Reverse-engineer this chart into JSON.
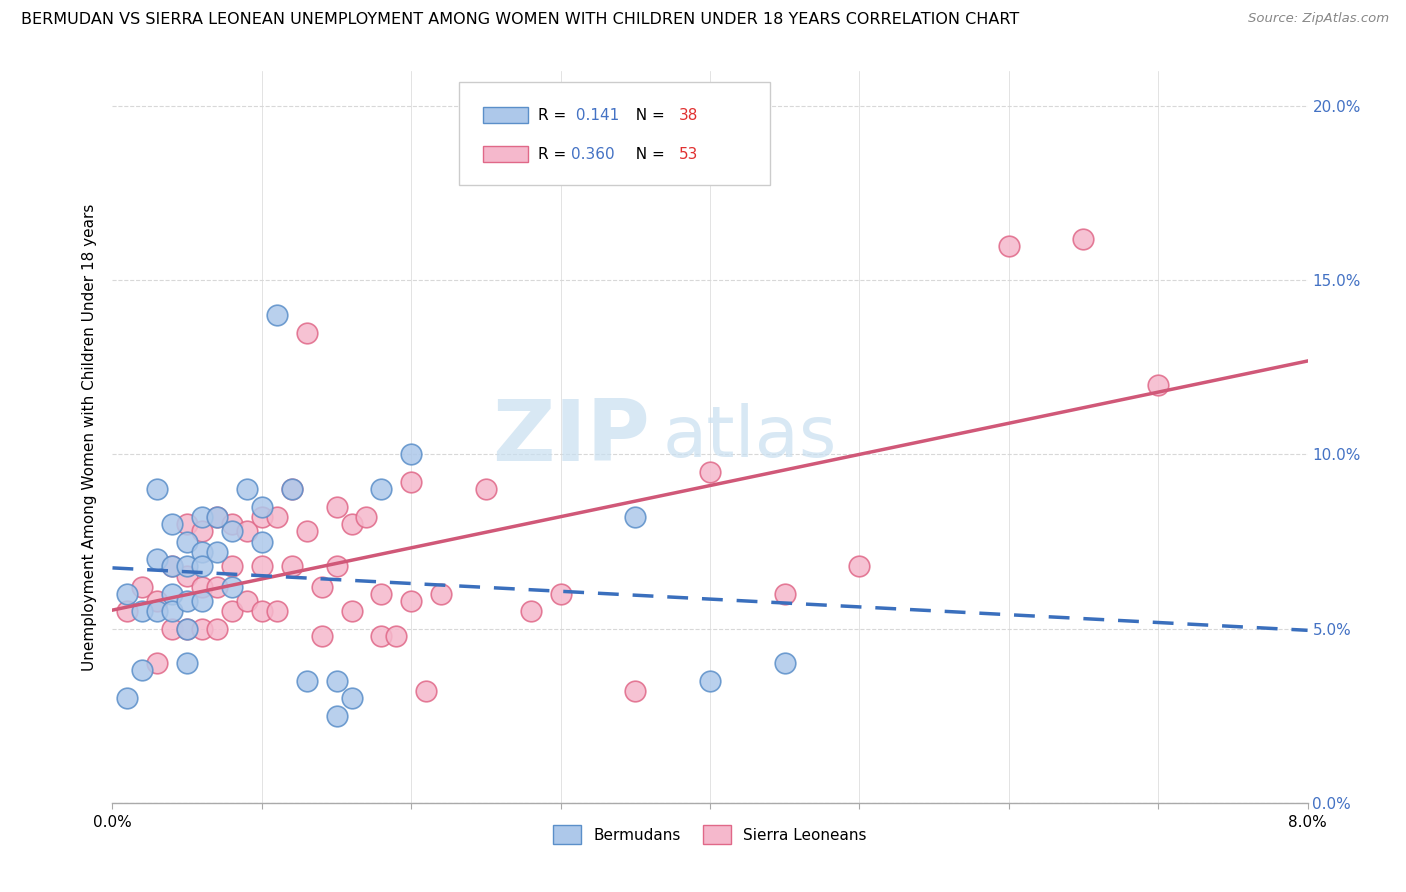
{
  "title": "BERMUDAN VS SIERRA LEONEAN UNEMPLOYMENT AMONG WOMEN WITH CHILDREN UNDER 18 YEARS CORRELATION CHART",
  "source": "Source: ZipAtlas.com",
  "ylabel": "Unemployment Among Women with Children Under 18 years",
  "bermudans_R": "0.141",
  "bermudans_N": "38",
  "sierra_R": "0.360",
  "sierra_N": "53",
  "bermudans_fill": "#adc8ea",
  "sierra_fill": "#f5b8cc",
  "bermudans_edge": "#5b8fc9",
  "sierra_edge": "#e06888",
  "trendline_bermudans_color": "#3a6fbd",
  "trendline_sierra_color": "#d05878",
  "watermark_zip": "ZIP",
  "watermark_atlas": "atlas",
  "background_color": "#ffffff",
  "grid_color": "#d8d8d8",
  "bermudans_x": [
    0.001,
    0.001,
    0.002,
    0.002,
    0.003,
    0.003,
    0.003,
    0.004,
    0.004,
    0.004,
    0.004,
    0.005,
    0.005,
    0.005,
    0.005,
    0.005,
    0.006,
    0.006,
    0.006,
    0.006,
    0.007,
    0.007,
    0.008,
    0.008,
    0.009,
    0.01,
    0.01,
    0.011,
    0.012,
    0.013,
    0.015,
    0.015,
    0.016,
    0.018,
    0.02,
    0.035,
    0.04,
    0.045
  ],
  "bermudans_y": [
    0.03,
    0.06,
    0.055,
    0.038,
    0.055,
    0.07,
    0.09,
    0.06,
    0.08,
    0.068,
    0.055,
    0.075,
    0.068,
    0.058,
    0.05,
    0.04,
    0.082,
    0.072,
    0.068,
    0.058,
    0.082,
    0.072,
    0.078,
    0.062,
    0.09,
    0.085,
    0.075,
    0.14,
    0.09,
    0.035,
    0.035,
    0.025,
    0.03,
    0.09,
    0.1,
    0.082,
    0.035,
    0.04
  ],
  "sierra_x": [
    0.001,
    0.002,
    0.003,
    0.003,
    0.004,
    0.004,
    0.005,
    0.005,
    0.005,
    0.006,
    0.006,
    0.006,
    0.007,
    0.007,
    0.007,
    0.008,
    0.008,
    0.008,
    0.009,
    0.009,
    0.01,
    0.01,
    0.01,
    0.011,
    0.011,
    0.012,
    0.012,
    0.013,
    0.013,
    0.014,
    0.014,
    0.015,
    0.015,
    0.016,
    0.016,
    0.017,
    0.018,
    0.018,
    0.019,
    0.02,
    0.02,
    0.021,
    0.022,
    0.025,
    0.028,
    0.03,
    0.035,
    0.04,
    0.045,
    0.05,
    0.06,
    0.065,
    0.07
  ],
  "sierra_y": [
    0.055,
    0.062,
    0.058,
    0.04,
    0.068,
    0.05,
    0.08,
    0.065,
    0.05,
    0.078,
    0.062,
    0.05,
    0.082,
    0.062,
    0.05,
    0.08,
    0.068,
    0.055,
    0.078,
    0.058,
    0.082,
    0.068,
    0.055,
    0.082,
    0.055,
    0.09,
    0.068,
    0.135,
    0.078,
    0.062,
    0.048,
    0.085,
    0.068,
    0.08,
    0.055,
    0.082,
    0.06,
    0.048,
    0.048,
    0.092,
    0.058,
    0.032,
    0.06,
    0.09,
    0.055,
    0.06,
    0.032,
    0.095,
    0.06,
    0.068,
    0.16,
    0.162,
    0.12
  ],
  "xlim": [
    0,
    0.08
  ],
  "ylim": [
    0,
    0.21
  ],
  "xtick_vals": [
    0.0,
    0.01,
    0.02,
    0.03,
    0.04,
    0.05,
    0.06,
    0.07,
    0.08
  ],
  "ytick_vals": [
    0.0,
    0.05,
    0.1,
    0.15,
    0.2
  ],
  "ytick_labels_right": [
    "0.0%",
    "5.0%",
    "10.0%",
    "15.0%",
    "20.0%"
  ]
}
